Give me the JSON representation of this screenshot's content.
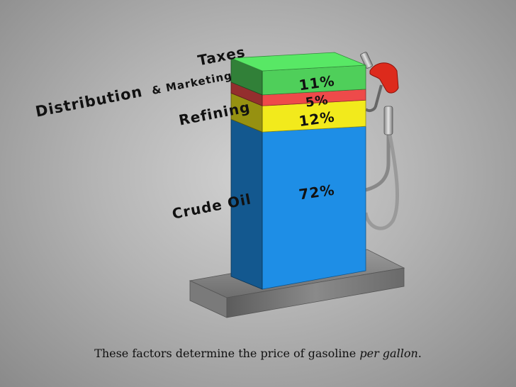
{
  "chart_data": {
    "type": "bar",
    "categories": [
      "Crude Oil",
      "Refining",
      "Distribution & Marketing",
      "Taxes"
    ],
    "values": [
      72,
      12,
      5,
      11
    ],
    "value_labels": [
      "72%",
      "12%",
      "5%",
      "11%"
    ],
    "colors": {
      "Crude Oil": "#1e8ee6",
      "Refining": "#f2ea1c",
      "Distribution & Marketing": "#ee4a4a",
      "Taxes": "#4fcf5a"
    },
    "unit": "%"
  },
  "caption": {
    "main": "These factors determine the price of gasoline ",
    "emphasis": "per gallon",
    "end": "."
  },
  "labels": {
    "distribution": "Distribution",
    "marketing": "& Marketing"
  }
}
